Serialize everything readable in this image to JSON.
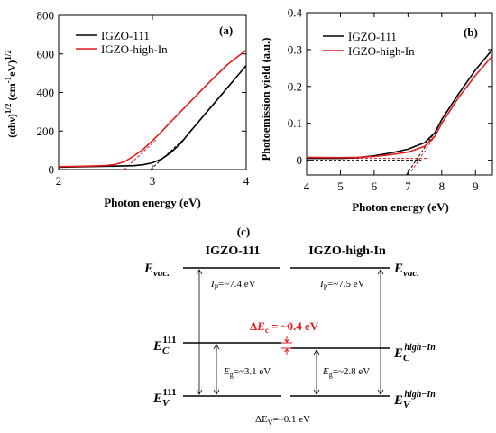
{
  "panel_a": {
    "label": "(a)",
    "xlabel": "Photon energy (eV)",
    "ylabel": "(αhν)1/2 (cm-1eV)1/2",
    "ylabel_parts": {
      "base": "(αhν)",
      "exp1": "1/2",
      "mid": " (cm",
      "exp2": "-1",
      "tail": "eV)",
      "exp3": "1/2"
    }
  },
  "panel_b": {
    "label": "(b)",
    "xlabel": "Photon energy (eV)",
    "ylabel": "Photoemission yield (a.u.)"
  },
  "panel_c": {
    "label": "(c)",
    "col_left": "IGZO-111",
    "col_right": "IGZO-high-In",
    "evac_base": "E",
    "evac_sub": "vac.",
    "ec_base": "E",
    "ec_left_sub": "C",
    "ec_left_sup": "111",
    "ec_right_sub": "C",
    "ec_right_sup": "high−In",
    "ev_base": "E",
    "ev_left_sub": "V",
    "ev_left_sup": "111",
    "ev_right_sub": "V",
    "ev_right_sup": "high−In",
    "ip_left": "=~7.4 eV",
    "ip_right": "=~7.5 eV",
    "ip_symbol": "I",
    "ip_sub": "P",
    "eg_left": "=~3.1 eV",
    "eg_right": "=~2.8 eV",
    "eg_symbol": "E",
    "eg_sub": "g",
    "delta_ec_prefix": "Δ",
    "delta_ec_symbol": "E",
    "delta_ec_sub": "c",
    "delta_ec_value": " = ~0.4 eV",
    "delta_ev": "ΔE",
    "delta_ev_sub": "V",
    "delta_ev_value": "=~0.1 eV",
    "accent": "#e41a1c"
  },
  "chart_data": [
    {
      "type": "line",
      "panel": "a",
      "xlabel": "Photon energy (eV)",
      "ylabel": "(αhν)1/2 (cm-1eV)1/2",
      "xlim": [
        2,
        4
      ],
      "ylim": [
        0,
        800
      ],
      "xticks": [
        2,
        3,
        4
      ],
      "yticks": [
        0,
        200,
        400,
        600,
        800
      ],
      "legend_position": "top-left",
      "series": [
        {
          "name": "IGZO-111",
          "color": "#000000",
          "x": [
            2.0,
            2.2,
            2.4,
            2.6,
            2.8,
            2.9,
            3.0,
            3.1,
            3.2,
            3.3,
            3.4,
            3.6,
            3.8,
            4.0
          ],
          "y": [
            12,
            14,
            16,
            18,
            20,
            25,
            35,
            55,
            90,
            135,
            195,
            310,
            425,
            540
          ]
        },
        {
          "name": "IGZO-high-In",
          "color": "#e41a1c",
          "x": [
            2.0,
            2.2,
            2.4,
            2.5,
            2.6,
            2.7,
            2.8,
            2.9,
            3.0,
            3.1,
            3.2,
            3.4,
            3.6,
            3.8,
            4.0
          ],
          "y": [
            15,
            17,
            19,
            21,
            26,
            40,
            70,
            105,
            150,
            198,
            250,
            350,
            450,
            545,
            620
          ]
        }
      ],
      "fit_lines": [
        {
          "color": "#e41a1c",
          "x": [
            2.7,
            3.05
          ],
          "y": [
            0,
            160
          ]
        },
        {
          "color": "#000000",
          "x": [
            2.98,
            3.35
          ],
          "y": [
            0,
            165
          ]
        }
      ]
    },
    {
      "type": "line",
      "panel": "b",
      "xlabel": "Photon energy (eV)",
      "ylabel": "Photoemission yield (a.u.)",
      "xlim": [
        4,
        9.5
      ],
      "ylim": [
        -0.04,
        0.4
      ],
      "xticks": [
        4,
        5,
        6,
        7,
        8,
        9
      ],
      "yticks": [
        0,
        0.1,
        0.2,
        0.3,
        0.4
      ],
      "legend_position": "top-left",
      "series": [
        {
          "name": "IGZO-111",
          "color": "#000000",
          "x": [
            4.0,
            5.0,
            5.5,
            6.0,
            6.5,
            7.0,
            7.5,
            7.8,
            8.0,
            8.5,
            9.0,
            9.5
          ],
          "y": [
            0.005,
            0.005,
            0.007,
            0.012,
            0.02,
            0.03,
            0.048,
            0.075,
            0.11,
            0.18,
            0.245,
            0.3
          ]
        },
        {
          "name": "IGZO-high-In",
          "color": "#e41a1c",
          "x": [
            4.0,
            5.0,
            5.5,
            6.0,
            6.5,
            7.0,
            7.5,
            7.8,
            8.0,
            8.5,
            9.0,
            9.5
          ],
          "y": [
            0.008,
            0.007,
            0.008,
            0.01,
            0.015,
            0.022,
            0.038,
            0.065,
            0.1,
            0.17,
            0.23,
            0.283
          ]
        }
      ],
      "fit_lines": [
        {
          "color": "#000000",
          "x": [
            4.0,
            7.4
          ],
          "y": [
            0.0,
            0.0
          ]
        },
        {
          "color": "#e41a1c",
          "x": [
            4.0,
            7.6
          ],
          "y": [
            0.005,
            0.005
          ]
        },
        {
          "color": "#000000",
          "x": [
            6.95,
            7.9
          ],
          "y": [
            -0.04,
            0.09
          ]
        },
        {
          "color": "#e41a1c",
          "x": [
            7.1,
            7.9
          ],
          "y": [
            -0.03,
            0.08
          ]
        }
      ]
    }
  ]
}
